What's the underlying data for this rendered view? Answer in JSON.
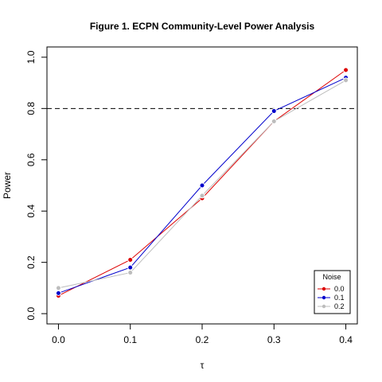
{
  "chart_data": {
    "type": "line",
    "title": "Figure 1. ECPN Community-Level Power Analysis",
    "xlabel": "τ",
    "ylabel": "Power",
    "x": [
      0.0,
      0.1,
      0.2,
      0.3,
      0.4
    ],
    "x_ticks": [
      "0.0",
      "0.1",
      "0.2",
      "0.3",
      "0.4"
    ],
    "y_ticks": [
      "0.0",
      "0.2",
      "0.4",
      "0.6",
      "0.8",
      "1.0"
    ],
    "xlim": [
      -0.016,
      0.416
    ],
    "ylim": [
      -0.04,
      1.04
    ],
    "reference_line": {
      "y": 0.8,
      "style": "dashed",
      "color": "#000000"
    },
    "legend": {
      "title": "Noise",
      "position": "bottom-right"
    },
    "series": [
      {
        "name": "0.0",
        "color": "#dd0000",
        "values": [
          0.07,
          0.21,
          0.45,
          0.75,
          0.95
        ]
      },
      {
        "name": "0.1",
        "color": "#0000cc",
        "values": [
          0.08,
          0.18,
          0.5,
          0.79,
          0.92
        ]
      },
      {
        "name": "0.2",
        "color": "#bdbdbd",
        "values": [
          0.1,
          0.16,
          0.46,
          0.75,
          0.91
        ]
      }
    ],
    "grid": false
  }
}
